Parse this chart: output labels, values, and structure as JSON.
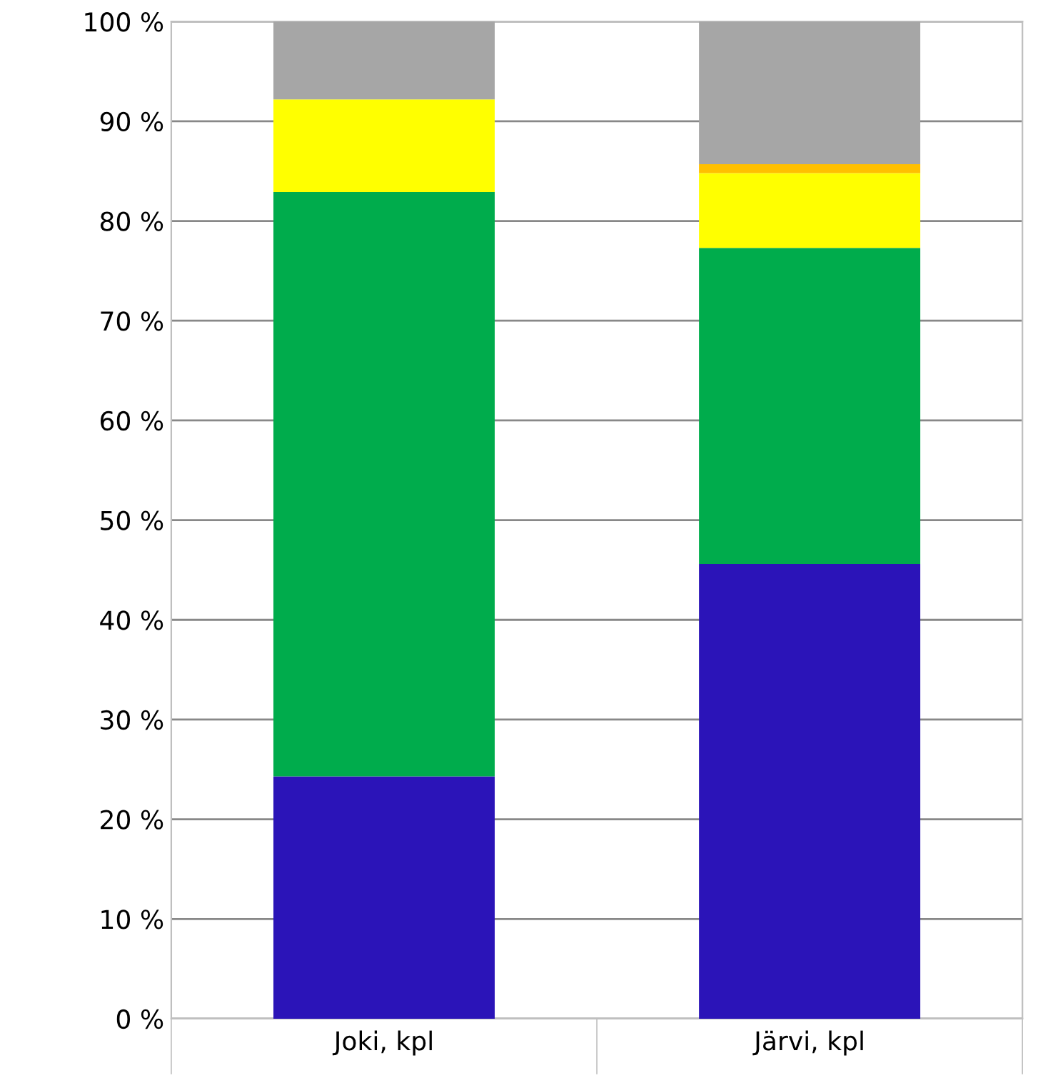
{
  "chart_data": {
    "type": "bar",
    "stacked": true,
    "categories": [
      "Joki, kpl",
      "Järvi, kpl"
    ],
    "series": [
      {
        "color": "#2b14b8",
        "values": [
          24.3,
          45.6
        ]
      },
      {
        "color": "#00ac4c",
        "values": [
          58.6,
          31.7
        ]
      },
      {
        "color": "#ffff00",
        "values": [
          9.3,
          7.5
        ]
      },
      {
        "color": "#ffc000",
        "values": [
          0,
          0.9
        ]
      },
      {
        "color": "#a6a6a6",
        "values": [
          7.8,
          14.3
        ]
      }
    ],
    "ylim": [
      0,
      100
    ],
    "yticks": [
      {
        "value": 0,
        "label": "0 %"
      },
      {
        "value": 10,
        "label": "10 %"
      },
      {
        "value": 20,
        "label": "20 %"
      },
      {
        "value": 30,
        "label": "30 %"
      },
      {
        "value": 40,
        "label": "40 %"
      },
      {
        "value": 50,
        "label": "50 %"
      },
      {
        "value": 60,
        "label": "60 %"
      },
      {
        "value": 70,
        "label": "70 %"
      },
      {
        "value": 80,
        "label": "80 %"
      },
      {
        "value": 90,
        "label": "90 %"
      },
      {
        "value": 100,
        "label": "100 %"
      }
    ],
    "grid": "y",
    "legend": false
  }
}
